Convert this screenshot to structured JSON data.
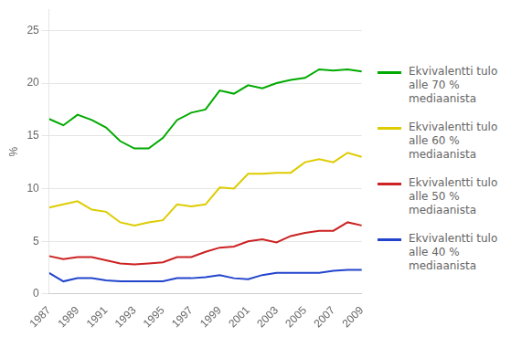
{
  "chart_data": {
    "type": "line",
    "x": [
      1987,
      1988,
      1989,
      1990,
      1991,
      1992,
      1993,
      1994,
      1995,
      1996,
      1997,
      1998,
      1999,
      2000,
      2001,
      2002,
      2003,
      2004,
      2005,
      2006,
      2007,
      2008,
      2009
    ],
    "series": [
      {
        "name": "Ekvivalentti tulo\nalle 70 %\nmediaanista",
        "color": "#00aa00",
        "values": [
          16.6,
          16.0,
          17.0,
          16.5,
          15.8,
          14.5,
          13.8,
          13.8,
          14.8,
          16.5,
          17.2,
          17.5,
          19.3,
          19.0,
          19.8,
          19.5,
          20.0,
          20.3,
          20.5,
          21.3,
          21.2,
          21.3,
          21.1
        ]
      },
      {
        "name": "Ekvivalentti tulo\nalle 60 %\nmediaanista",
        "color": "#ddcc00",
        "values": [
          8.2,
          8.5,
          8.8,
          8.0,
          7.8,
          6.8,
          6.5,
          6.8,
          7.0,
          8.5,
          8.3,
          8.5,
          10.1,
          10.0,
          11.4,
          11.4,
          11.5,
          11.5,
          12.5,
          12.8,
          12.5,
          13.4,
          13.0
        ]
      },
      {
        "name": "Ekvivalentti tulo\nalle 50 %\nmediaanista",
        "color": "#cc2222",
        "values": [
          3.6,
          3.3,
          3.5,
          3.5,
          3.2,
          2.9,
          2.8,
          2.9,
          3.0,
          3.5,
          3.5,
          4.0,
          4.4,
          4.5,
          5.0,
          5.2,
          4.9,
          5.5,
          5.8,
          6.0,
          6.0,
          6.8,
          6.5
        ]
      },
      {
        "name": "Ekvivalentti tulo\nalle 40 %\nmediaanista",
        "color": "#2244cc",
        "values": [
          2.0,
          1.2,
          1.5,
          1.5,
          1.3,
          1.2,
          1.2,
          1.2,
          1.2,
          1.5,
          1.5,
          1.6,
          1.8,
          1.5,
          1.4,
          1.8,
          2.0,
          2.0,
          2.0,
          2.0,
          2.2,
          2.3,
          2.3
        ]
      }
    ],
    "xlim": [
      1987,
      2009
    ],
    "xticks": [
      1987,
      1989,
      1991,
      1993,
      1995,
      1997,
      1999,
      2001,
      2003,
      2005,
      2007,
      2009
    ],
    "ylim": [
      0,
      27
    ],
    "yticks": [
      0,
      5,
      10,
      15,
      20,
      25
    ],
    "ylabel": "%",
    "grid": true,
    "legend": "right"
  }
}
